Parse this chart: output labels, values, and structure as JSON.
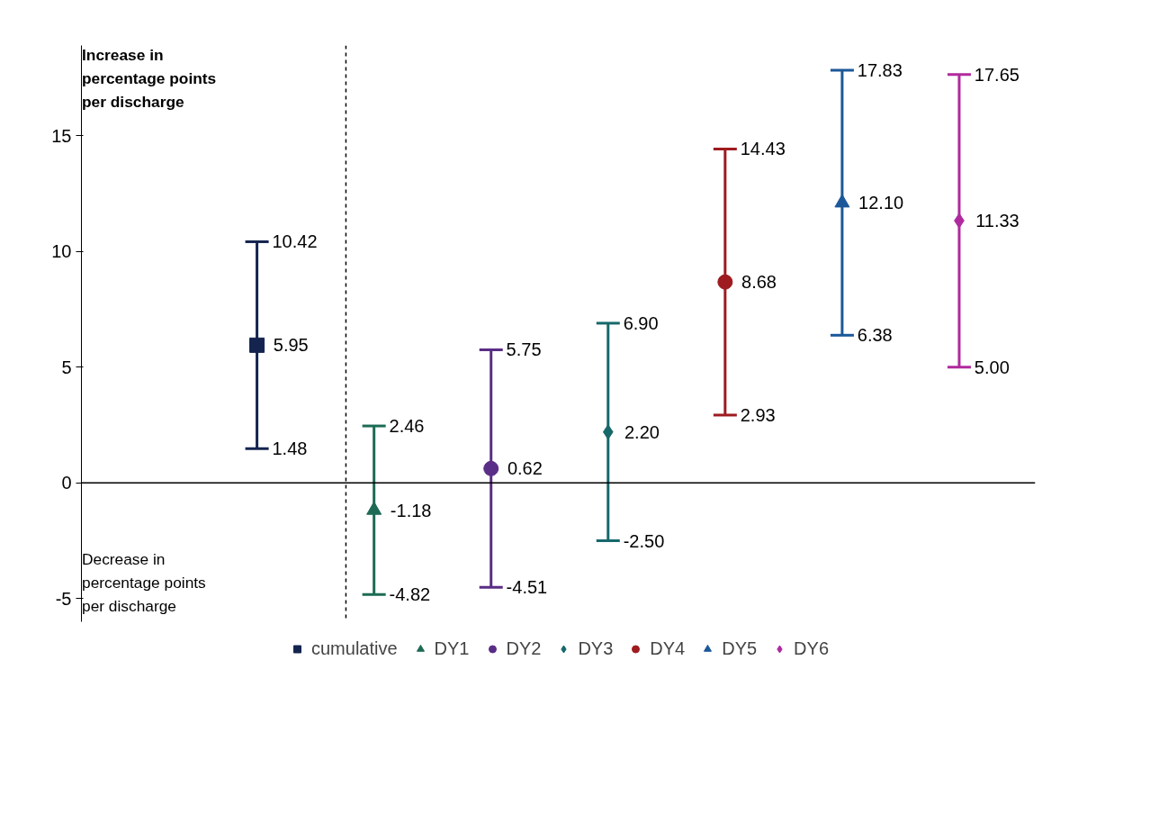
{
  "chart_data": {
    "type": "scatter",
    "categories": [
      null,
      null,
      null,
      null,
      null,
      null,
      null,
      null
    ],
    "ylim": [
      -6,
      18.9
    ],
    "yticks": [
      -5,
      0,
      5,
      10,
      15
    ],
    "tick_labels": "y",
    "grid": false,
    "legend": "bottom",
    "ref_lines": [
      {
        "axis": "y",
        "value": 0,
        "color": "#000000",
        "line_style": "solid"
      }
    ],
    "annotations": [
      "Increase in\npercentage points\nper discharge",
      "Decrease in\npercentage points\nper discharge",
      "1.48",
      "10.42",
      "-4.82",
      "2.46",
      "-4.51",
      "5.75",
      "-2.50",
      "6.90",
      "2.93",
      "14.43",
      "6.38",
      "17.83",
      "5.00",
      "17.65"
    ],
    "series": [
      {
        "name": "cumulative",
        "color": "#14244f",
        "marker": "square",
        "values": [
          null,
          5.95,
          null,
          null,
          null,
          null,
          null,
          null
        ],
        "value_labels": [
          null,
          "5.95",
          null,
          null,
          null,
          null,
          null,
          null
        ],
        "errors": [
          null,
          [
            1.48,
            10.42
          ],
          null,
          null,
          null,
          null,
          null,
          null
        ]
      },
      {
        "name": "DY1",
        "color": "#1d6b55",
        "marker": "triangle",
        "values": [
          null,
          null,
          -1.18,
          null,
          null,
          null,
          null,
          null
        ],
        "value_labels": [
          null,
          null,
          "-1.18",
          null,
          null,
          null,
          null,
          null
        ],
        "errors": [
          null,
          null,
          [
            -4.82,
            2.46
          ],
          null,
          null,
          null,
          null,
          null
        ]
      },
      {
        "name": "DY2",
        "color": "#5a2d86",
        "marker": "circle",
        "values": [
          null,
          null,
          null,
          0.62,
          null,
          null,
          null,
          null
        ],
        "value_labels": [
          null,
          null,
          null,
          "0.62",
          null,
          null,
          null,
          null
        ],
        "errors": [
          null,
          null,
          null,
          [
            -4.51,
            5.75
          ],
          null,
          null,
          null,
          null
        ]
      },
      {
        "name": "DY3",
        "color": "#17686b",
        "marker": "diamond",
        "values": [
          null,
          null,
          null,
          null,
          2.2,
          null,
          null,
          null
        ],
        "value_labels": [
          null,
          null,
          null,
          null,
          "2.20",
          null,
          null,
          null
        ],
        "errors": [
          null,
          null,
          null,
          null,
          [
            -2.5,
            6.9
          ],
          null,
          null,
          null
        ]
      },
      {
        "name": "DY4",
        "color": "#9e1b1f",
        "marker": "circle",
        "values": [
          null,
          null,
          null,
          null,
          null,
          8.68,
          null,
          null
        ],
        "value_labels": [
          null,
          null,
          null,
          null,
          null,
          "8.68",
          null,
          null
        ],
        "errors": [
          null,
          null,
          null,
          null,
          null,
          [
            2.93,
            14.43
          ],
          null,
          null
        ]
      },
      {
        "name": "DY5",
        "color": "#1c5899",
        "marker": "triangle",
        "values": [
          null,
          null,
          null,
          null,
          null,
          null,
          12.1,
          null
        ],
        "value_labels": [
          null,
          null,
          null,
          null,
          null,
          null,
          "12.10",
          null
        ],
        "errors": [
          null,
          null,
          null,
          null,
          null,
          null,
          [
            6.38,
            17.83
          ],
          null
        ]
      },
      {
        "name": "DY6",
        "color": "#b02a9e",
        "marker": "diamond",
        "values": [
          null,
          null,
          null,
          null,
          null,
          null,
          null,
          11.33
        ],
        "value_labels": [
          null,
          null,
          null,
          null,
          null,
          null,
          null,
          "11.33"
        ],
        "errors": [
          null,
          null,
          null,
          null,
          null,
          null,
          null,
          [
            5.0,
            17.65
          ]
        ]
      }
    ]
  }
}
